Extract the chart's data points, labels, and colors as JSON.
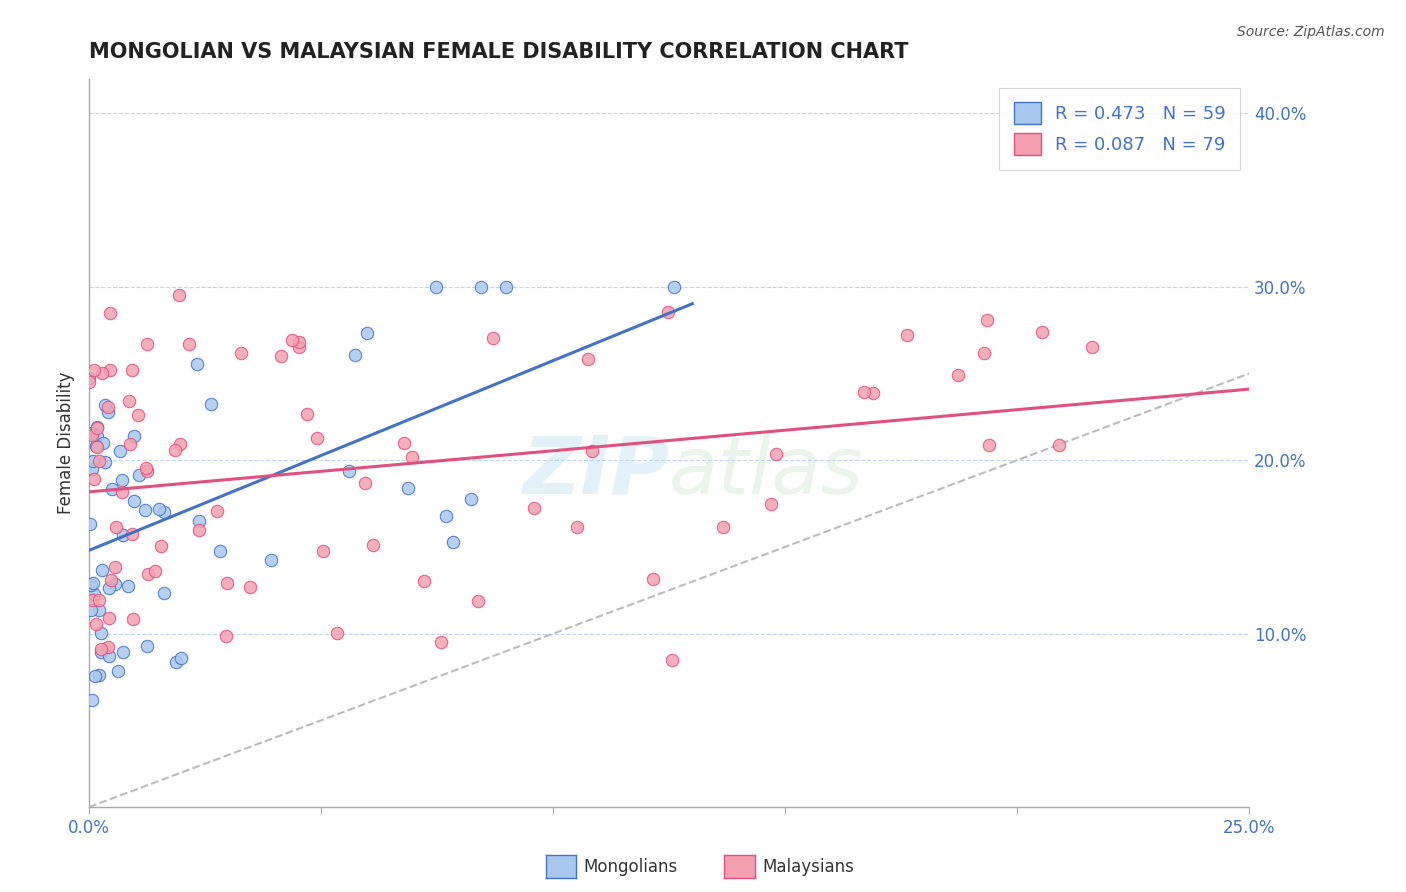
{
  "title": "MONGOLIAN VS MALAYSIAN FEMALE DISABILITY CORRELATION CHART",
  "source": "Source: ZipAtlas.com",
  "ylabel": "Female Disability",
  "legend_mongolians": "Mongolians",
  "legend_malaysians": "Malaysians",
  "r_mongolian": 0.473,
  "n_mongolian": 59,
  "r_malaysian": 0.087,
  "n_malaysian": 79,
  "mongolian_color": "#a8c8f0",
  "mongolian_line_color": "#4472c4",
  "malaysian_color": "#f4a0b0",
  "malaysian_line_color": "#e05080",
  "right_axis_color": "#4472c4",
  "watermark_zip": "ZIP",
  "watermark_atlas": "atlas",
  "xlim": [
    0.0,
    0.25
  ],
  "ylim": [
    0.0,
    0.42
  ],
  "yticks_right": [
    0.1,
    0.2,
    0.3,
    0.4
  ],
  "ytick_labels_right": [
    "10.0%",
    "20.0%",
    "30.0%",
    "40.0%"
  ]
}
